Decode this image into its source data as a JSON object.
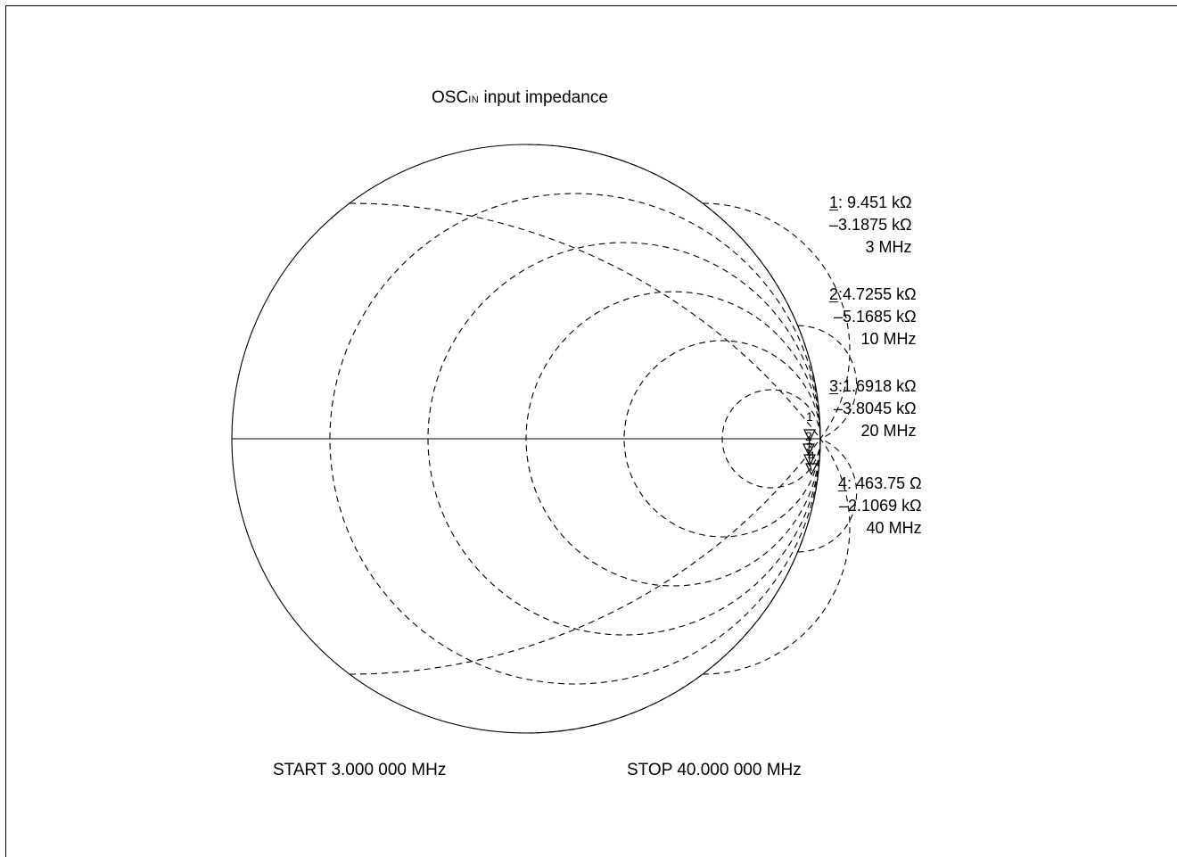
{
  "title": {
    "main": "OSC",
    "subscript": "IN",
    "suffix": " input impedance"
  },
  "start_label": "START 3.000 000 MHz",
  "stop_label": "STOP 40.000 000 MHz",
  "markers": [
    {
      "index": "1",
      "sep": ":",
      "resistance": "9.451 kΩ",
      "reactance": "–3.1875 kΩ",
      "frequency": "3 MHz"
    },
    {
      "index": "2",
      "sep": ":",
      "resistance": "4.7255 kΩ",
      "reactance": "–5.1685 kΩ",
      "frequency": "10 MHz"
    },
    {
      "index": "3",
      "sep": ":",
      "resistance": "1.6918 kΩ",
      "reactance": "–3.8045 kΩ",
      "frequency": "20 MHz"
    },
    {
      "index": "4",
      "sep": ":",
      "resistance": "463.75 Ω",
      "reactance": "–2.1069 kΩ",
      "frequency": "40 MHz"
    }
  ],
  "chart_data": {
    "type": "smith",
    "title": "OSCIN input impedance",
    "start_frequency": "3.000 000 MHz",
    "stop_frequency": "40.000 000 MHz",
    "grid": {
      "normalized_resistance_circles": [
        0.2,
        0.5,
        1,
        2,
        5
      ],
      "normalized_reactance_arcs": [
        0.5,
        1,
        2,
        5
      ],
      "line_style": "dashed"
    },
    "points": [
      {
        "marker": "1",
        "frequency_mhz": 3,
        "r_ohm": 9451,
        "x_ohm": -3187.5
      },
      {
        "marker": "2",
        "frequency_mhz": 10,
        "r_ohm": 4725.5,
        "x_ohm": -5168.5
      },
      {
        "marker": "3",
        "frequency_mhz": 20,
        "r_ohm": 1691.8,
        "x_ohm": -3804.5
      },
      {
        "marker": "4",
        "frequency_mhz": 40,
        "r_ohm": 463.75,
        "x_ohm": -2106.9
      }
    ],
    "legend_position": "right"
  }
}
